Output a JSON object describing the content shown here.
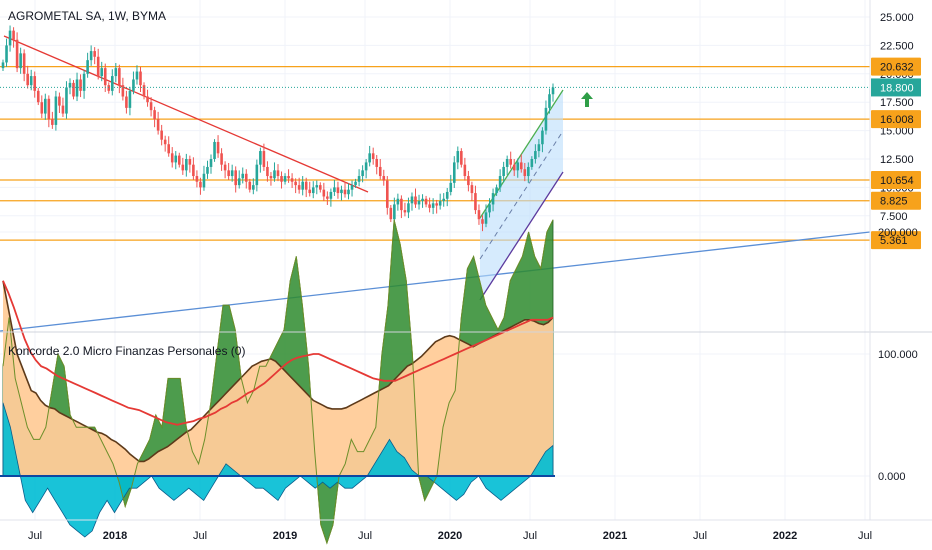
{
  "header": {
    "title": "AGROMETAL SA, 1W, BYMA"
  },
  "indicator": {
    "title": "Koncorde 2.0 Micro Finanzas Personales (0)"
  },
  "colors": {
    "up": "#26a69a",
    "down": "#ef5350",
    "level": "#f7a21b",
    "trend_red": "#e53935",
    "trend_blue": "#5b8fd6",
    "channel_green": "#4caf50",
    "channel_purple": "#5c3a9e",
    "channel_fill": "#bbdefb",
    "arrow": "#2e9e47",
    "price_line": "#26a69a",
    "koncorde_orange": "#ffcc99",
    "koncorde_green": "#2e8b2e",
    "koncorde_blue": "#00bcd4",
    "koncorde_red": "#e53935",
    "koncorde_brown": "#5d3a1a"
  },
  "chart_data": [
    {
      "type": "candlestick",
      "title": "AGROMETAL SA, 1W, BYMA",
      "y_ticks": [
        "25.000",
        "22.500",
        "20.000",
        "17.500",
        "15.000",
        "12.500",
        "10.000",
        "7.500"
      ],
      "x_ticks": [
        "Jul",
        "2018",
        "Jul",
        "2019",
        "Jul",
        "2020",
        "Jul",
        "2021",
        "Jul",
        "2022",
        "Jul"
      ],
      "ylim": [
        4.8,
        26.2
      ],
      "horizontal_levels": [
        20.632,
        16.008,
        10.654,
        8.825,
        5.361
      ],
      "level_labels": [
        "20.632",
        "16.008",
        "10.654",
        "8.825",
        "5.361"
      ],
      "last_price": 18.8,
      "last_price_label": "18.800",
      "series_close": [
        21.0,
        22.5,
        23.8,
        23.0,
        20.5,
        21.8,
        20.0,
        19.0,
        19.8,
        18.5,
        17.5,
        16.5,
        17.8,
        16.0,
        15.5,
        18.0,
        17.2,
        16.5,
        18.8,
        19.2,
        18.0,
        19.5,
        18.5,
        20.0,
        21.2,
        22.0,
        21.5,
        19.8,
        20.5,
        19.0,
        18.5,
        19.8,
        20.5,
        19.0,
        18.0,
        17.0,
        18.5,
        19.5,
        20.2,
        19.0,
        18.0,
        17.5,
        16.8,
        16.0,
        15.0,
        14.2,
        13.8,
        13.0,
        12.2,
        12.8,
        12.0,
        11.5,
        12.5,
        12.0,
        11.0,
        10.5,
        10.0,
        11.2,
        11.8,
        12.5,
        14.0,
        13.0,
        12.0,
        11.5,
        11.0,
        11.5,
        10.2,
        10.8,
        11.2,
        10.5,
        9.8,
        10.2,
        12.0,
        13.2,
        11.8,
        11.0,
        10.8,
        11.5,
        11.0,
        10.5,
        11.0,
        10.8,
        10.5,
        10.2,
        9.8,
        10.5,
        9.8,
        9.5,
        10.0,
        10.2,
        9.8,
        9.2,
        9.0,
        9.6,
        10.0,
        9.5,
        9.8,
        9.4,
        9.8,
        10.2,
        10.5,
        11.0,
        11.5,
        12.2,
        13.0,
        12.5,
        11.8,
        11.0,
        10.6,
        8.2,
        7.2,
        8.5,
        9.0,
        8.0,
        7.8,
        8.6,
        9.2,
        8.5,
        8.8,
        9.0,
        8.5,
        8.2,
        8.6,
        8.4,
        8.8,
        9.0,
        9.6,
        10.4,
        12.2,
        13.2,
        12.0,
        11.0,
        10.2,
        9.5,
        8.0,
        7.2,
        6.8,
        7.8,
        8.5,
        9.5,
        10.0,
        11.0,
        11.8,
        12.5,
        12.0,
        11.5,
        12.2,
        11.6,
        11.0,
        11.8,
        12.5,
        13.2,
        13.8,
        15.0,
        17.0,
        18.2,
        18.8
      ]
    },
    {
      "type": "area",
      "title": "Koncorde 2.0 Micro Finanzas Personales (0)",
      "y_ticks": [
        "200.000",
        "100.000",
        "0.000"
      ],
      "ylim": [
        -70,
        225
      ],
      "series": [
        {
          "key": "orange",
          "values": [
            160,
            140,
            120,
            100,
            90,
            80,
            70,
            68,
            62,
            58,
            56,
            55,
            52,
            50,
            48,
            46,
            44,
            42,
            40,
            38,
            36,
            35,
            33,
            30,
            28,
            25,
            22,
            18,
            15,
            12,
            12,
            14,
            17,
            20,
            22,
            24,
            27,
            30,
            33,
            36,
            38,
            42,
            46,
            50,
            54,
            58,
            62,
            66,
            70,
            74,
            78,
            82,
            86,
            90,
            92,
            94,
            95,
            96,
            94,
            90,
            86,
            82,
            78,
            74,
            70,
            66,
            62,
            60,
            58,
            56,
            55,
            55,
            55,
            56,
            58,
            60,
            62,
            64,
            66,
            68,
            70,
            72,
            74,
            78,
            82,
            86,
            90,
            92,
            95,
            98,
            102,
            106,
            110,
            112,
            114,
            115,
            114,
            112,
            110,
            108,
            106,
            108,
            110,
            112,
            114,
            116,
            118,
            120,
            122,
            124,
            126,
            128,
            128,
            127,
            125,
            124,
            126,
            130
          ]
        },
        {
          "key": "green",
          "values": [
            90,
            130,
            80,
            60,
            40,
            30,
            30,
            40,
            70,
            100,
            90,
            50,
            40,
            40,
            40,
            40,
            30,
            20,
            10,
            -5,
            -25,
            -10,
            10,
            20,
            30,
            50,
            40,
            80,
            80,
            80,
            40,
            20,
            10,
            30,
            60,
            100,
            140,
            140,
            120,
            80,
            60,
            70,
            90,
            90,
            100,
            110,
            120,
            160,
            180,
            140,
            90,
            20,
            -40,
            -55,
            -40,
            0,
            10,
            30,
            20,
            20,
            30,
            40,
            100,
            140,
            210,
            190,
            160,
            100,
            0,
            -20,
            -10,
            0,
            40,
            60,
            70,
            130,
            170,
            180,
            160,
            140,
            130,
            120,
            130,
            160,
            170,
            180,
            200,
            180,
            170,
            200,
            210
          ]
        },
        {
          "key": "blue",
          "values": [
            60,
            40,
            10,
            -20,
            -30,
            -20,
            -10,
            -20,
            -30,
            -40,
            -45,
            -50,
            -45,
            -30,
            -20,
            -30,
            -20,
            -10,
            -10,
            -5,
            0,
            -10,
            -15,
            -20,
            -15,
            -10,
            -15,
            -20,
            -10,
            0,
            10,
            5,
            0,
            -5,
            -10,
            -10,
            -15,
            -20,
            -10,
            -5,
            0,
            -5,
            -10,
            -5,
            -10,
            -5,
            -10,
            -10,
            -5,
            0,
            10,
            20,
            30,
            20,
            15,
            5,
            0,
            0,
            -5,
            -10,
            -15,
            -20,
            -15,
            -5,
            0,
            -10,
            -15,
            -20,
            -15,
            -10,
            -5,
            0,
            10,
            20,
            25
          ]
        },
        {
          "key": "red_ma",
          "values": [
            160,
            150,
            138,
            125,
            112,
            102,
            95,
            90,
            88,
            85,
            82,
            80,
            78,
            76,
            74,
            72,
            70,
            68,
            66,
            64,
            62,
            60,
            58,
            56,
            55,
            54,
            52,
            50,
            48,
            46,
            44,
            43,
            42,
            43,
            44,
            45,
            47,
            48,
            50,
            52,
            55,
            57,
            60,
            62,
            65,
            68,
            70,
            73,
            76,
            80,
            84,
            88,
            92,
            95,
            97,
            98,
            99,
            100,
            100,
            98,
            96,
            94,
            92,
            90,
            88,
            86,
            84,
            82,
            80,
            79,
            78,
            78,
            78,
            80,
            82,
            84,
            86,
            88,
            90,
            92,
            94,
            96,
            98,
            100,
            102,
            104,
            106,
            108,
            110,
            112,
            114,
            116,
            118,
            120,
            122,
            124,
            126,
            128,
            128,
            128,
            128,
            130
          ]
        }
      ]
    }
  ]
}
